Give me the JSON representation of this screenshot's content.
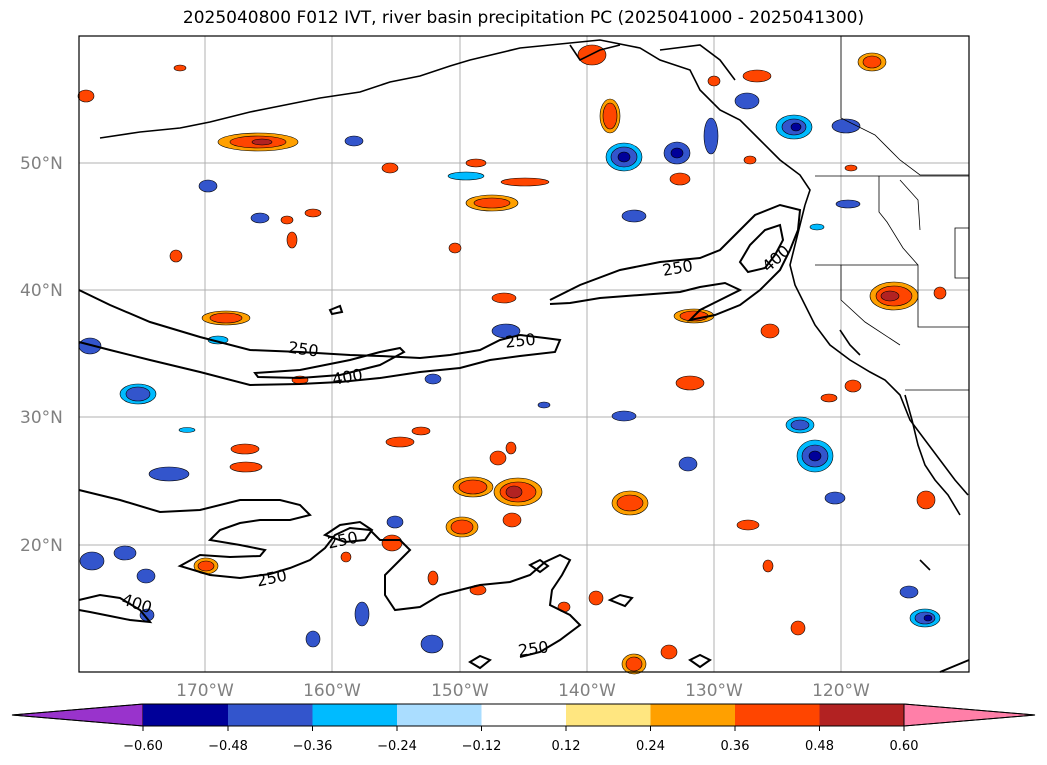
{
  "title": "2025040800 F012 IVT, river basin precipitation PC (2025041000 - 2025041300)",
  "map": {
    "lat_labels": [
      "50°N",
      "40°N",
      "30°N",
      "20°N"
    ],
    "lon_labels": [
      "170°W",
      "160°W",
      "150°W",
      "140°W",
      "130°W",
      "120°W"
    ],
    "grid_color": "#b0b0b0",
    "contour_labels": [
      "250",
      "400",
      "250",
      "250",
      "400",
      "250",
      "250",
      "400",
      "250"
    ]
  },
  "colorbar": {
    "colors": [
      "#9933cc",
      "#000099",
      "#3355cc",
      "#00bbff",
      "#aaddff",
      "#ffffff",
      "#ffe680",
      "#ffa000",
      "#ff4500",
      "#b22222",
      "#ff7fa8"
    ],
    "tick_labels": [
      "−0.60",
      "−0.48",
      "−0.36",
      "−0.24",
      "−0.12",
      "0.12",
      "0.24",
      "0.36",
      "0.48",
      "0.60"
    ]
  }
}
